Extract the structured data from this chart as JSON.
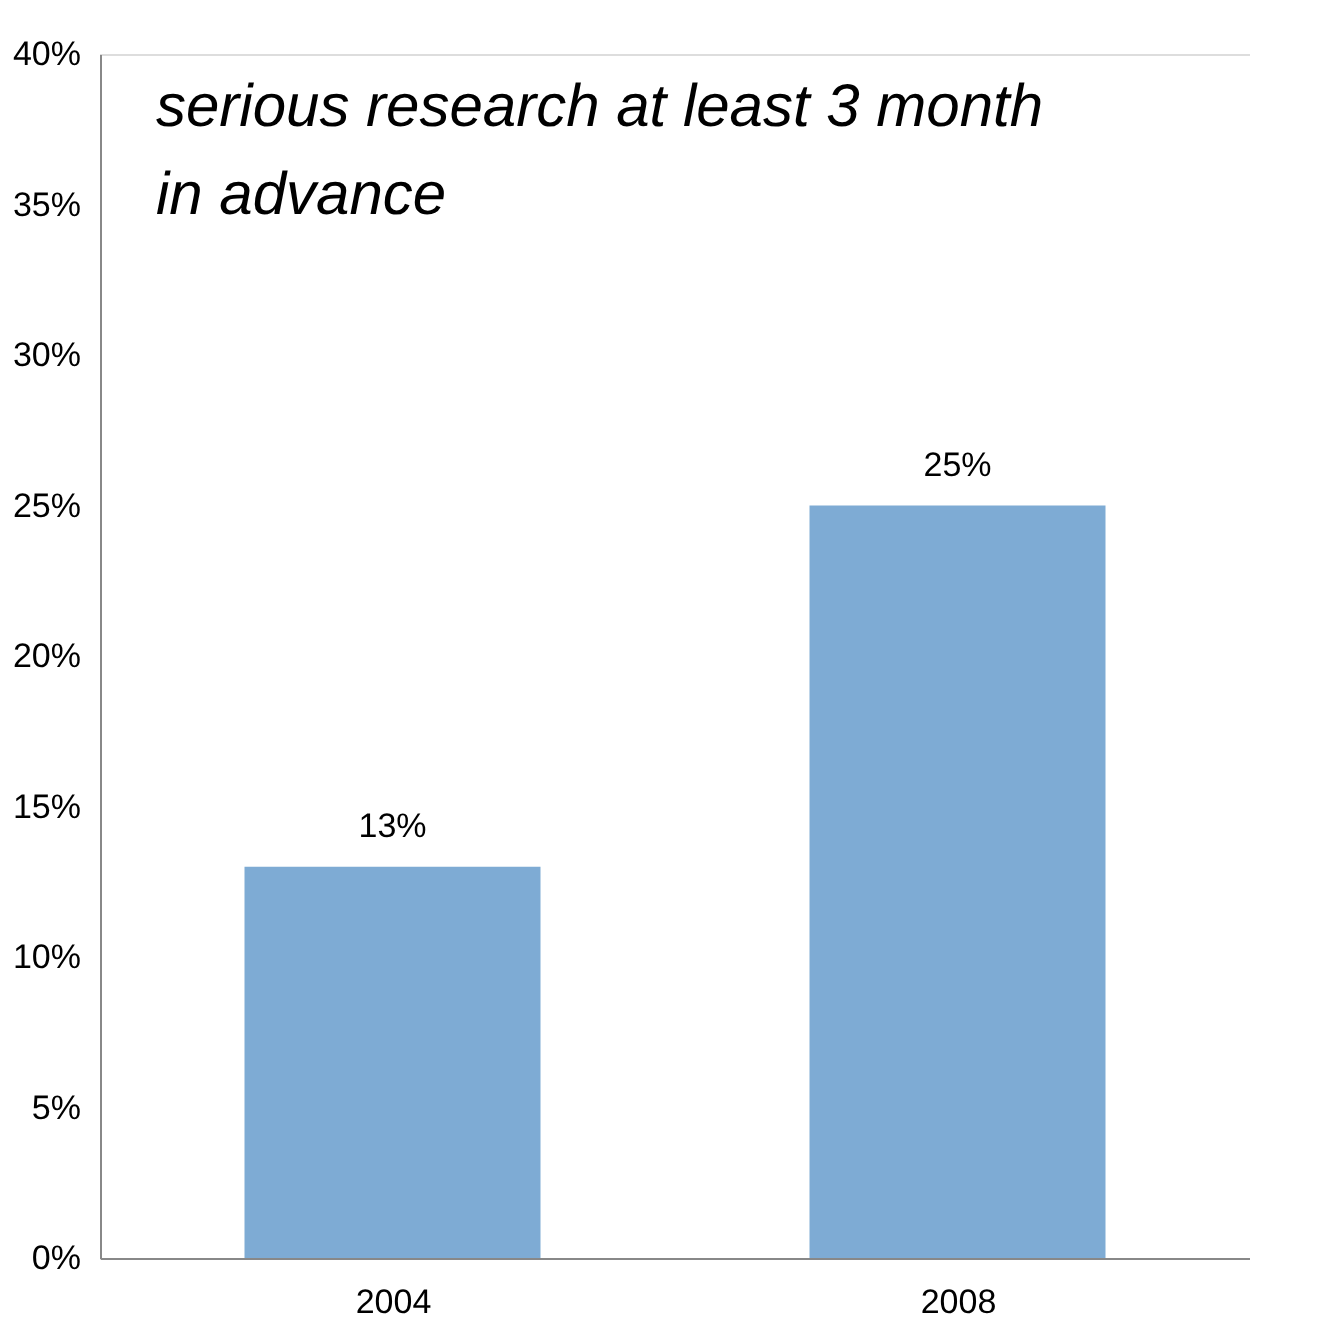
{
  "chart_data": {
    "type": "bar",
    "annotations": [
      "serious research at least 3 month\nin advance"
    ],
    "categories": [
      "2004",
      "2008"
    ],
    "values": [
      13,
      25
    ],
    "color": "#7eabd4",
    "ylim": [
      0,
      40
    ],
    "yticks": [
      {
        "value": 0,
        "label": "0%"
      },
      {
        "value": 5,
        "label": "5%"
      },
      {
        "value": 10,
        "label": "10%"
      },
      {
        "value": 15,
        "label": "15%"
      },
      {
        "value": 20,
        "label": "20%"
      },
      {
        "value": 25,
        "label": "25%"
      },
      {
        "value": 30,
        "label": "30%"
      },
      {
        "value": 35,
        "label": "35%"
      },
      {
        "value": 40,
        "label": "40%"
      }
    ],
    "value_labels": [
      "13%",
      "25%"
    ],
    "grid": false
  }
}
